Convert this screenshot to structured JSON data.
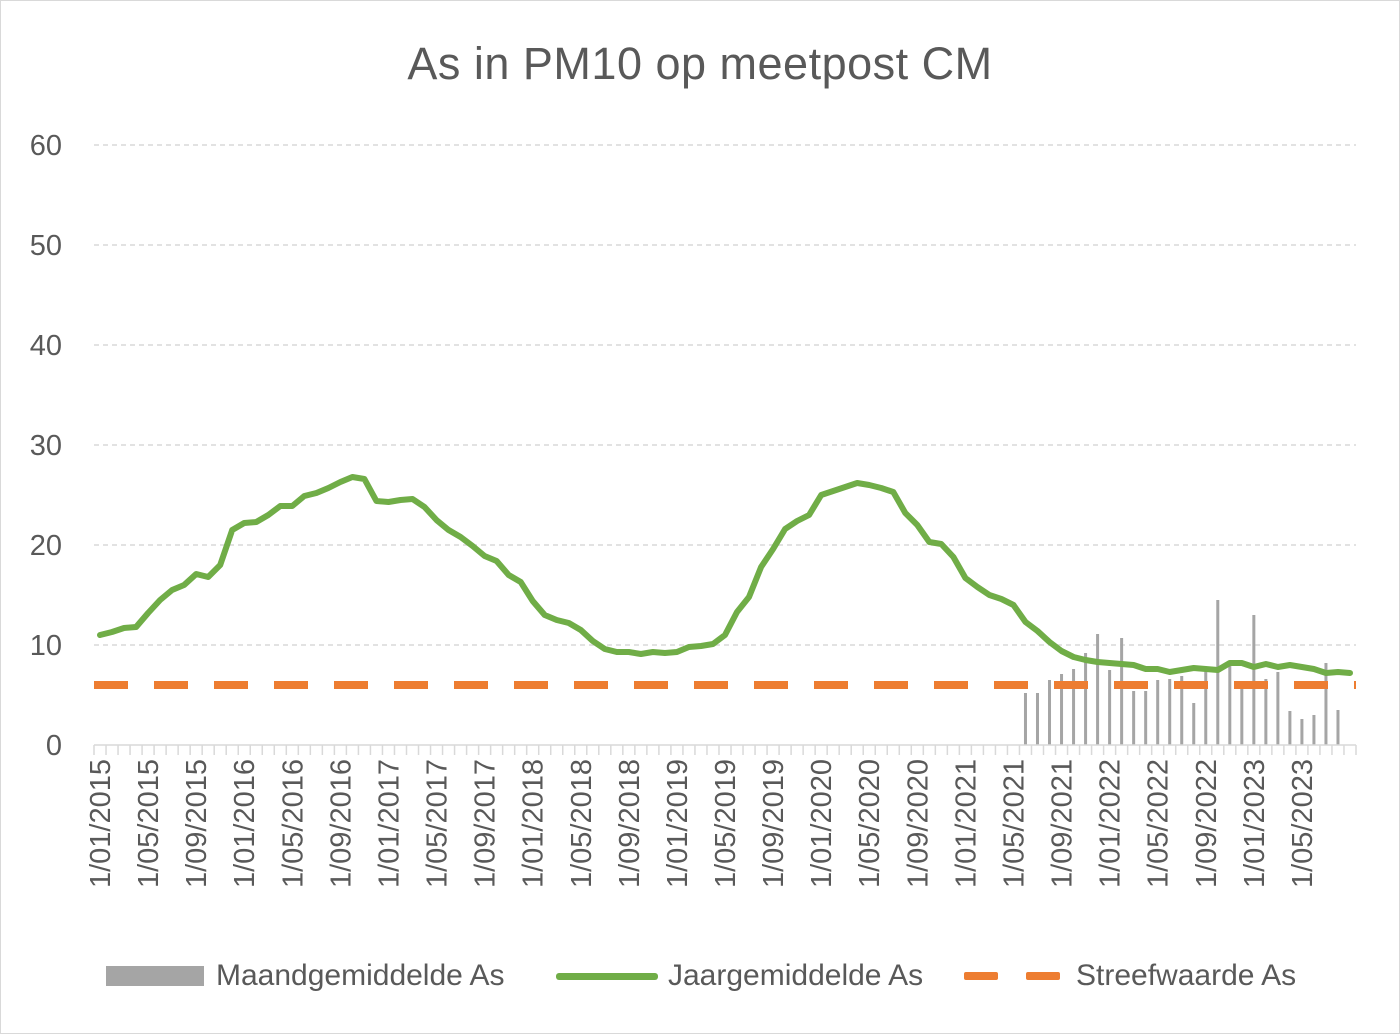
{
  "chart_data": {
    "type": "line",
    "title": "As in PM10 op meetpost CM",
    "xlabel": "",
    "ylabel": "",
    "ylim": [
      0,
      60
    ],
    "yticks": [
      0,
      10,
      20,
      30,
      40,
      50,
      60
    ],
    "x_tick_labels": [
      "1/01/2015",
      "1/05/2015",
      "1/09/2015",
      "1/01/2016",
      "1/05/2016",
      "1/09/2016",
      "1/01/2017",
      "1/05/2017",
      "1/09/2017",
      "1/01/2018",
      "1/05/2018",
      "1/09/2018",
      "1/01/2019",
      "1/05/2019",
      "1/09/2019",
      "1/01/2020",
      "1/05/2020",
      "1/09/2020",
      "1/01/2021",
      "1/05/2021",
      "1/09/2021",
      "1/01/2022",
      "1/05/2022",
      "1/09/2022",
      "1/01/2023",
      "1/05/2023"
    ],
    "x_start": "2015-01",
    "x_end": "2023-09",
    "grid": true,
    "legend_position": "bottom",
    "colors": {
      "maandgemiddelde": "#a5a5a5",
      "jaargemiddelde": "#70ad47",
      "streefwaarde": "#ed7d31",
      "grid": "#d9d9d9",
      "text": "#595959"
    },
    "series": [
      {
        "name": "Maandgemiddelde As",
        "type": "bar",
        "start": "2021-06",
        "values": [
          5.2,
          5.2,
          6.5,
          7.1,
          7.6,
          9.2,
          11.1,
          7.5,
          10.7,
          5.4,
          5.4,
          6.5,
          6.6,
          6.9,
          4.2,
          7.4,
          14.5,
          8.4,
          5.6,
          13.0,
          6.6,
          7.3,
          3.4,
          2.6,
          3.0,
          8.2,
          3.5
        ]
      },
      {
        "name": "Jaargemiddelde As",
        "type": "line",
        "start": "2015-01",
        "values": [
          11.0,
          11.3,
          11.7,
          11.8,
          13.2,
          14.5,
          15.5,
          16.0,
          17.1,
          16.8,
          18.0,
          21.5,
          22.2,
          22.3,
          23.0,
          23.9,
          23.9,
          24.9,
          25.2,
          25.7,
          26.3,
          26.8,
          26.6,
          24.4,
          24.3,
          24.5,
          24.6,
          23.8,
          22.5,
          21.5,
          20.8,
          19.9,
          18.9,
          18.4,
          17.0,
          16.3,
          14.4,
          13.0,
          12.5,
          12.2,
          11.5,
          10.4,
          9.6,
          9.3,
          9.3,
          9.1,
          9.3,
          9.2,
          9.3,
          9.8,
          9.9,
          10.1,
          11.0,
          13.3,
          14.8,
          17.8,
          19.6,
          21.6,
          22.4,
          23.0,
          25.0,
          25.4,
          25.8,
          26.2,
          26.0,
          25.7,
          25.3,
          23.2,
          22.0,
          20.3,
          20.1,
          18.8,
          16.7,
          15.8,
          15.0,
          14.6,
          14.0,
          12.3,
          11.4,
          10.3,
          9.4,
          8.8,
          8.5,
          8.3,
          8.2,
          8.1,
          8.0,
          7.6,
          7.6,
          7.3,
          7.5,
          7.7,
          7.6,
          7.5,
          8.2,
          8.2,
          7.8,
          8.1,
          7.8,
          8.0,
          7.8,
          7.6,
          7.2,
          7.3,
          7.2
        ]
      },
      {
        "name": "Streefwaarde As",
        "type": "line",
        "style": "dashed",
        "value": 6
      }
    ]
  }
}
